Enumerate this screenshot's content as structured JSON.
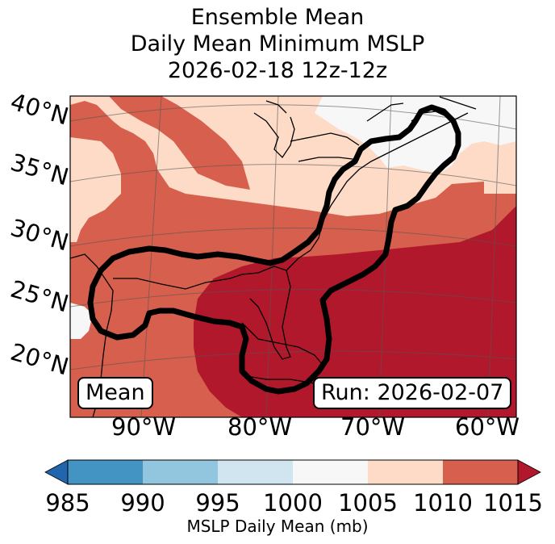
{
  "title": {
    "line1": "Ensemble Mean",
    "line2": "Daily Mean Minimum MSLP",
    "line3": "2026-02-18 12z-12z"
  },
  "map": {
    "lat_labels": [
      "40°N",
      "35°N",
      "30°N",
      "25°N",
      "20°N"
    ],
    "lon_labels": [
      "90°W",
      "80°W",
      "70°W",
      "60°W"
    ],
    "left_box": "Mean",
    "right_box": "Run: 2026-02-07"
  },
  "colorbar": {
    "ticks": [
      "985",
      "990",
      "995",
      "1000",
      "1005",
      "1010",
      "1015"
    ],
    "label": "MSLP Daily Mean (mb)",
    "colors": {
      "under": "#2166ac",
      "c985_990": "#4393c3",
      "c990_995": "#92c5de",
      "c995_1000": "#d1e5f0",
      "c1000_1005": "#f7f7f7",
      "c1005_1010": "#fddbc7",
      "c1010_1015": "#d6604d",
      "over": "#b2182b"
    }
  }
}
